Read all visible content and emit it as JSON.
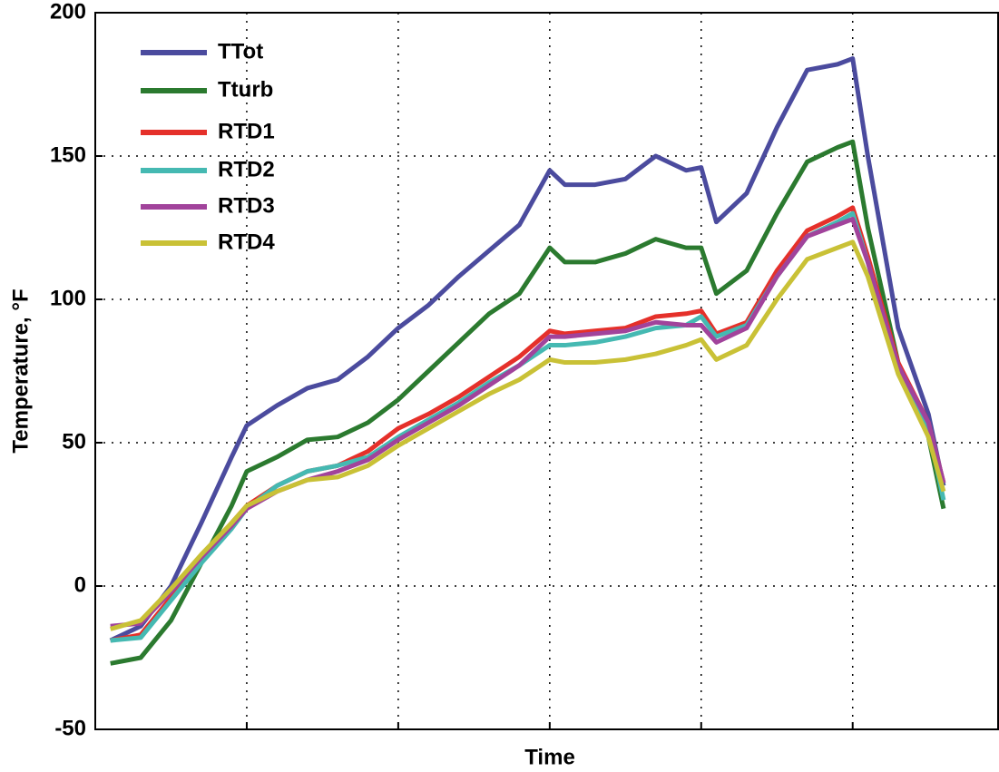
{
  "chart_data": {
    "type": "line",
    "x_label": "Time",
    "y_label": "Temperature, °F",
    "x": [
      0.1,
      0.3,
      0.5,
      0.7,
      0.9,
      1.0,
      1.2,
      1.4,
      1.6,
      1.8,
      2.0,
      2.2,
      2.4,
      2.6,
      2.8,
      3.0,
      3.1,
      3.3,
      3.5,
      3.7,
      3.9,
      4.0,
      4.1,
      4.3,
      4.5,
      4.7,
      4.9,
      5.0,
      5.1,
      5.3,
      5.5,
      5.6
    ],
    "xlim": [
      0,
      5.96
    ],
    "xticks": [
      1,
      2,
      3,
      4,
      5
    ],
    "ylim": [
      -50,
      200
    ],
    "yticks": [
      -50,
      0,
      50,
      100,
      150,
      200
    ],
    "grid": true,
    "legend": "upper left",
    "series": [
      {
        "name": "TTot",
        "color": "#4b4b9e",
        "values": [
          -19,
          -14,
          0,
          22,
          45,
          56,
          63,
          69,
          72,
          80,
          90,
          98,
          108,
          117,
          126,
          145,
          140,
          140,
          142,
          150,
          145,
          146,
          127,
          137,
          160,
          180,
          182,
          184,
          150,
          90,
          60,
          35
        ]
      },
      {
        "name": "Tturb",
        "color": "#2b7a2f",
        "values": [
          -27,
          -25,
          -12,
          8,
          28,
          40,
          45,
          51,
          52,
          57,
          65,
          75,
          85,
          95,
          102,
          118,
          113,
          113,
          116,
          121,
          118,
          118,
          102,
          110,
          130,
          148,
          153,
          155,
          125,
          78,
          52,
          27
        ]
      },
      {
        "name": "RTD1",
        "color": "#e5302a",
        "values": [
          -19,
          -17,
          -4,
          10,
          22,
          28,
          35,
          40,
          42,
          47,
          55,
          60,
          66,
          73,
          80,
          89,
          88,
          89,
          90,
          94,
          95,
          96,
          88,
          92,
          110,
          124,
          129,
          132,
          115,
          78,
          57,
          36
        ]
      },
      {
        "name": "RTD2",
        "color": "#45b9b2",
        "values": [
          -19,
          -18,
          -5,
          8,
          20,
          27,
          35,
          40,
          42,
          45,
          52,
          58,
          64,
          71,
          77,
          84,
          84,
          85,
          87,
          90,
          91,
          94,
          87,
          91,
          108,
          122,
          127,
          130,
          113,
          76,
          55,
          30
        ]
      },
      {
        "name": "RTD3",
        "color": "#a1439b",
        "values": [
          -14,
          -13,
          -2,
          10,
          21,
          27,
          33,
          37,
          40,
          44,
          51,
          57,
          63,
          70,
          77,
          87,
          87,
          88,
          89,
          92,
          91,
          91,
          85,
          90,
          108,
          122,
          126,
          128,
          113,
          77,
          57,
          36
        ]
      },
      {
        "name": "RTD4",
        "color": "#c9c136",
        "values": [
          -15,
          -12,
          -1,
          11,
          22,
          28,
          33,
          37,
          38,
          42,
          49,
          55,
          61,
          67,
          72,
          79,
          78,
          78,
          79,
          81,
          84,
          86,
          79,
          84,
          100,
          114,
          118,
          120,
          108,
          74,
          52,
          33
        ]
      }
    ]
  }
}
